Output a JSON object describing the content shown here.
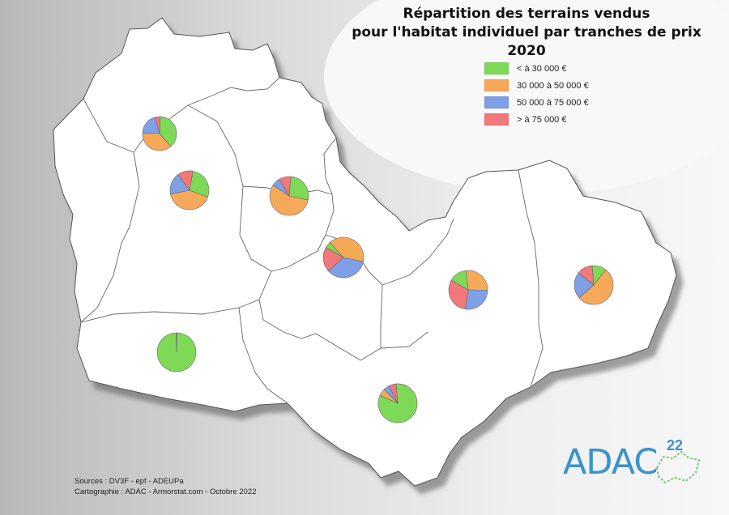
{
  "title": {
    "line1": "Répartition des terrains vendus",
    "line2": "pour l'habitat individuel par tranches de prix 2020"
  },
  "legend": [
    {
      "label": "< à 30 000 €",
      "color": "#7ed957"
    },
    {
      "label": "30 000 à 50 000 €",
      "color": "#f7a95a"
    },
    {
      "label": "50 000 à 75 000 €",
      "color": "#7fa0e6"
    },
    {
      "label": "> à 75 000 €",
      "color": "#f2787a"
    }
  ],
  "sources": "Sources : DV3F - epf - ADEUPa",
  "cartographie": "Cartographie : ADAC - Armorstat.com - Octobre 2022",
  "logo": {
    "text": "ADAC",
    "superscript": "22"
  },
  "pies": [
    {
      "id": "pie-nw",
      "shares": [
        0.38,
        0.37,
        0.2,
        0.05
      ]
    },
    {
      "id": "pie-w",
      "shares": [
        0.28,
        0.41,
        0.18,
        0.13
      ]
    },
    {
      "id": "pie-centre-n",
      "shares": [
        0.27,
        0.56,
        0.07,
        0.1
      ]
    },
    {
      "id": "pie-centre",
      "shares": [
        0.05,
        0.4,
        0.35,
        0.2
      ]
    },
    {
      "id": "pie-e",
      "shares": [
        0.15,
        0.27,
        0.27,
        0.31
      ]
    },
    {
      "id": "pie-far-e",
      "shares": [
        0.12,
        0.53,
        0.22,
        0.13
      ]
    },
    {
      "id": "pie-sw",
      "shares": [
        0.995,
        0.005,
        0.0,
        0.0
      ]
    },
    {
      "id": "pie-s",
      "shares": [
        0.83,
        0.06,
        0.05,
        0.06
      ]
    }
  ]
}
